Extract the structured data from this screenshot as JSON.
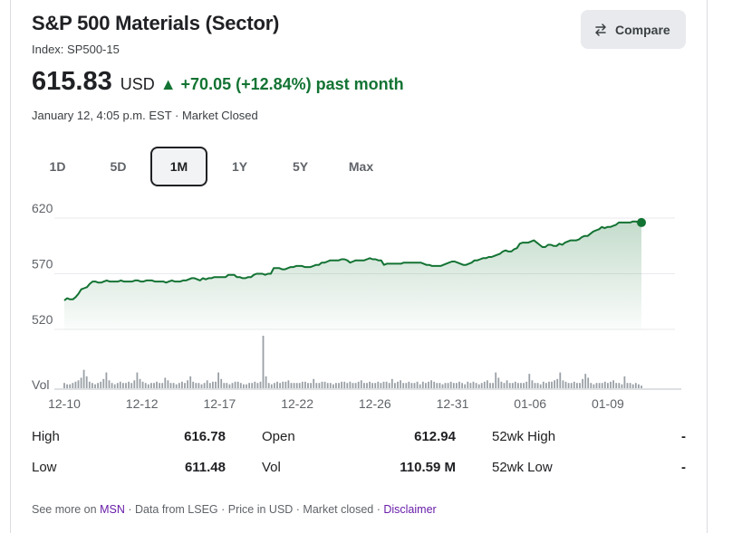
{
  "header": {
    "title": "S&P 500 Materials (Sector)",
    "index": "Index: SP500-15",
    "compare_label": "Compare"
  },
  "quote": {
    "price": "615.83",
    "currency": "USD",
    "change": "▲ +70.05 (+12.84%) past month",
    "timestamp": "January 12, 4:05 p.m. EST · Market Closed"
  },
  "ranges": [
    {
      "label": "1D",
      "active": false
    },
    {
      "label": "5D",
      "active": false
    },
    {
      "label": "1M",
      "active": true
    },
    {
      "label": "1Y",
      "active": false
    },
    {
      "label": "5Y",
      "active": false
    },
    {
      "label": "Max",
      "active": false
    }
  ],
  "chart_data": {
    "type": "area",
    "line_color": "#137333",
    "ylim": [
      520,
      620
    ],
    "y_ticks": [
      "620",
      "570",
      "520"
    ],
    "y_tick_values": [
      620,
      570,
      520
    ],
    "vol_label": "Vol",
    "x_tick_labels": [
      "12-10",
      "12-12",
      "12-17",
      "12-22",
      "12-26",
      "12-31",
      "01-06",
      "01-09"
    ],
    "x_tick_index": [
      0,
      10,
      20,
      30,
      40,
      50,
      60,
      70
    ],
    "series": [
      {
        "values": [
          546,
          548,
          547,
          547,
          549,
          552,
          556,
          557,
          558,
          561,
          563,
          563,
          562,
          562,
          563,
          564,
          563,
          563,
          563,
          563,
          564,
          563,
          563,
          563,
          563,
          564,
          564,
          563,
          563,
          564,
          564,
          564,
          563,
          563,
          563,
          563,
          562,
          563,
          564,
          563,
          563,
          563,
          564,
          564,
          565,
          566,
          566,
          565,
          564,
          566,
          565,
          566,
          566,
          567,
          567,
          567,
          567,
          567,
          569,
          569,
          569,
          567,
          567,
          566,
          566,
          567,
          567,
          569,
          570,
          570,
          570,
          569,
          570,
          570,
          575,
          575,
          575,
          574,
          574,
          575,
          576,
          576,
          577,
          577,
          577,
          576,
          576,
          576,
          577,
          578,
          578,
          580,
          580,
          581,
          582,
          582,
          582,
          582,
          583,
          583,
          582,
          580,
          581,
          582,
          582,
          582,
          582,
          583,
          584,
          583,
          583,
          582,
          582,
          578,
          579,
          579,
          579,
          579,
          579,
          579,
          580,
          580,
          580,
          580,
          580,
          580,
          580,
          579,
          578,
          578,
          577,
          577,
          577,
          577,
          578,
          579,
          580,
          581,
          581,
          580,
          579,
          578,
          578,
          579,
          580,
          582,
          582,
          583,
          584,
          584,
          585,
          585,
          586,
          587,
          588,
          590,
          591,
          590,
          590,
          592,
          593,
          597,
          598,
          598,
          598,
          599,
          600,
          598,
          596,
          594,
          594,
          596,
          596,
          595,
          595,
          597,
          596,
          598,
          599,
          600,
          600,
          600,
          601,
          603,
          604,
          604,
          606,
          608,
          609,
          610,
          612,
          611,
          612,
          612,
          613,
          614,
          616,
          616,
          616,
          616,
          616,
          617,
          617,
          616,
          616
        ]
      }
    ],
    "volume": [
      4,
      3,
      3,
      4,
      5,
      6,
      8,
      14,
      9,
      5,
      4,
      3,
      4,
      5,
      7,
      12,
      6,
      4,
      3,
      4,
      5,
      4,
      4,
      5,
      4,
      6,
      12,
      7,
      5,
      4,
      3,
      4,
      4,
      5,
      4,
      4,
      8,
      6,
      4,
      4,
      3,
      4,
      5,
      4,
      6,
      9,
      5,
      4,
      4,
      3,
      4,
      6,
      4,
      5,
      5,
      12,
      7,
      4,
      4,
      3,
      4,
      5,
      5,
      4,
      3,
      3,
      4,
      4,
      5,
      4,
      5,
      40,
      9,
      4,
      3,
      4,
      5,
      4,
      5,
      5,
      6,
      4,
      4,
      4,
      4,
      5,
      5,
      4,
      4,
      7,
      4,
      4,
      5,
      5,
      4,
      4,
      3,
      4,
      4,
      5,
      5,
      4,
      5,
      4,
      4,
      5,
      6,
      4,
      4,
      5,
      4,
      4,
      5,
      4,
      5,
      5,
      4,
      7,
      4,
      5,
      6,
      4,
      4,
      5,
      4,
      4,
      5,
      3,
      5,
      4,
      5,
      6,
      5,
      4,
      4,
      3,
      4,
      4,
      5,
      4,
      4,
      5,
      4,
      3,
      5,
      4,
      5,
      4,
      3,
      4,
      5,
      6,
      4,
      4,
      12,
      8,
      5,
      4,
      6,
      4,
      4,
      5,
      4,
      4,
      4,
      5,
      11,
      6,
      4,
      4,
      3,
      5,
      4,
      5,
      5,
      6,
      7,
      12,
      6,
      5,
      4,
      4,
      5,
      4,
      4,
      7,
      11,
      8,
      4,
      3,
      4,
      4,
      4,
      5,
      4,
      5,
      6,
      4,
      4,
      3,
      9,
      4,
      4,
      3,
      4,
      3,
      2
    ]
  },
  "stats": [
    [
      {
        "label": "High",
        "value": "616.78"
      },
      {
        "label": "Open",
        "value": "612.94"
      },
      {
        "label": "52wk High",
        "value": "-"
      }
    ],
    [
      {
        "label": "Low",
        "value": "611.48"
      },
      {
        "label": "Vol",
        "value": "110.59 M"
      },
      {
        "label": "52wk Low",
        "value": "-"
      }
    ]
  ],
  "footer": {
    "see_more": "See more on",
    "msn": "MSN",
    "rest": " · Data from LSEG · Price in USD · Market closed · ",
    "disclaimer": "Disclaimer"
  }
}
